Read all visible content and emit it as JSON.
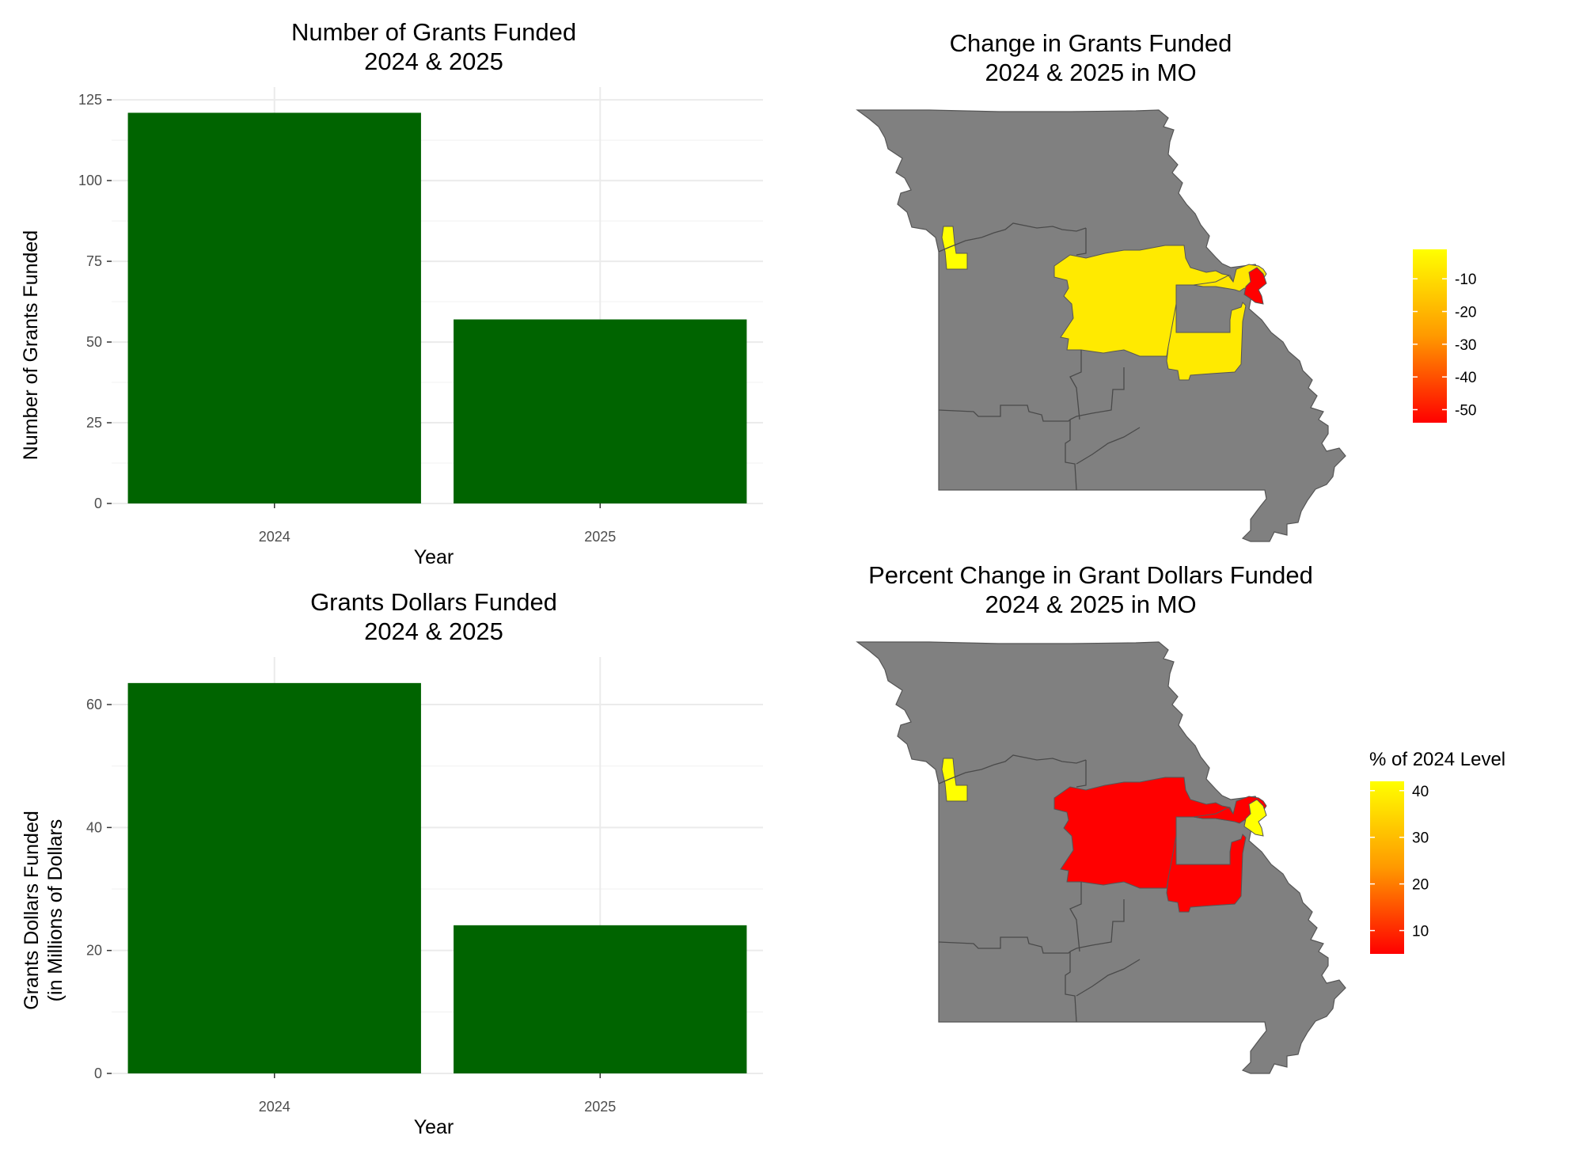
{
  "chart_data": [
    {
      "id": "count",
      "type": "bar",
      "title_lines": [
        "Number of Grants Funded",
        "2024 & 2025"
      ],
      "xlabel": "Year",
      "ylabel_lines": [
        "Number of Grants Funded"
      ],
      "categories": [
        "2024",
        "2025"
      ],
      "values": [
        121,
        57
      ],
      "ylim": [
        0,
        127
      ],
      "yticks": [
        0,
        25,
        50,
        75,
        100,
        125
      ],
      "grid": true,
      "color": "#006400"
    },
    {
      "id": "dollars",
      "type": "bar",
      "title_lines": [
        "Grants Dollars Funded",
        "2024 & 2025"
      ],
      "xlabel": "Year",
      "ylabel_lines": [
        "Grants Dollars Funded",
        "(in Millions of Dollars"
      ],
      "categories": [
        "2024",
        "2025"
      ],
      "values": [
        63.5,
        24.1
      ],
      "ylim": [
        0,
        66.7
      ],
      "yticks": [
        0,
        20,
        40,
        60
      ],
      "grid": true,
      "color": "#006400"
    },
    {
      "id": "change_map",
      "type": "heatmap",
      "title_lines": [
        "Change in Grants Funded",
        "2024 & 2025 in MO"
      ],
      "legend": {
        "title": "",
        "ticks": [
          -10,
          -20,
          -30,
          -40,
          -50
        ],
        "range": [
          -54,
          -1
        ],
        "low_color": "#ff0000",
        "high_color": "#ffff00",
        "placement": "right"
      },
      "regions": [
        {
          "name": "western",
          "value": -3,
          "color": "#ffff00"
        },
        {
          "name": "central",
          "value": -4,
          "color": "#ffea00"
        },
        {
          "name": "southeast-central",
          "value": -4,
          "color": "#ffea00"
        },
        {
          "name": "st-louis-strip",
          "value": -5,
          "color": "#ffe600"
        },
        {
          "name": "st-louis",
          "value": -54,
          "color": "#ff0000"
        }
      ],
      "default_color": "#808080"
    },
    {
      "id": "pct_map",
      "type": "heatmap",
      "title_lines": [
        "Percent Change in Grant Dollars Funded",
        "2024 & 2025 in MO"
      ],
      "legend": {
        "title": "% of 2024 Level",
        "ticks": [
          40,
          30,
          20,
          10
        ],
        "range": [
          5,
          42
        ],
        "low_color": "#ff0000",
        "high_color": "#ffff00",
        "placement": "right"
      },
      "regions": [
        {
          "name": "western",
          "value": 41,
          "color": "#ffff00"
        },
        {
          "name": "central",
          "value": 5,
          "color": "#ff0000"
        },
        {
          "name": "southeast-central",
          "value": 5,
          "color": "#ff0000"
        },
        {
          "name": "st-louis-strip",
          "value": 5,
          "color": "#ff0000"
        },
        {
          "name": "st-louis",
          "value": 40,
          "color": "#ffff00"
        }
      ],
      "default_color": "#808080"
    }
  ]
}
